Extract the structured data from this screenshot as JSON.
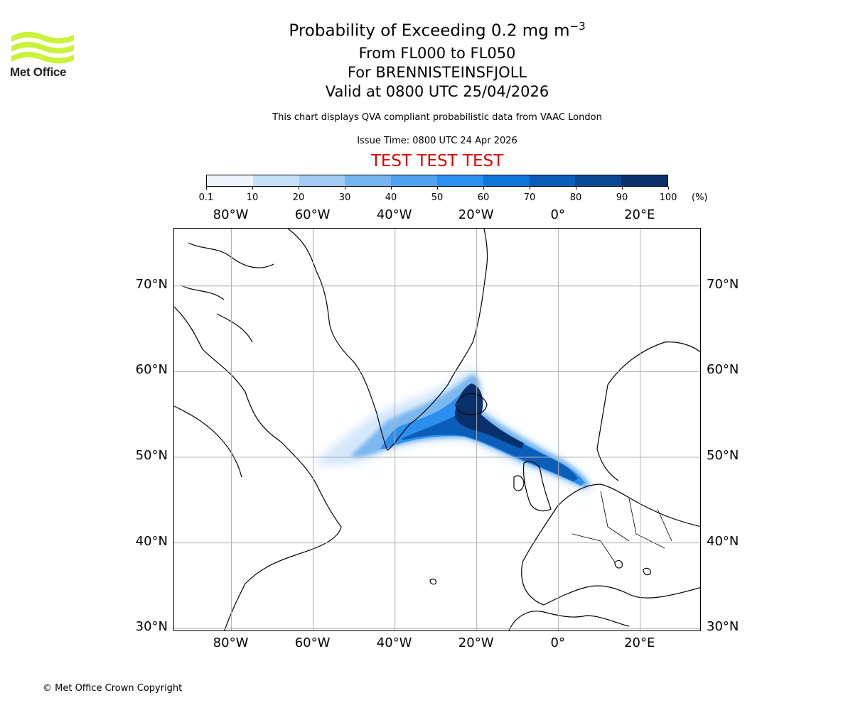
{
  "header": {
    "title_prefix": "Probability of Exceeding 0.2 mg m",
    "title_exponent": "−3",
    "levels": "From FL000 to FL050",
    "volcano": "For BRENNISTEINSFJOLL",
    "valid": "Valid at 0800 UTC 25/04/2026",
    "description": "This chart displays QVA compliant probabilistic data from VAAC London",
    "issue_time": "Issue Time: 0800 UTC 24 Apr 2026",
    "test_banner": "TEST TEST TEST"
  },
  "logo": {
    "text": "Met Office",
    "color": "#c9f23a"
  },
  "colorbar": {
    "unit": "(%)",
    "ticks": [
      "0.1",
      "10",
      "20",
      "30",
      "40",
      "50",
      "60",
      "70",
      "80",
      "90",
      "100"
    ],
    "colors": [
      "#eef5fd",
      "#c6e0f8",
      "#9fcbf4",
      "#74b4ef",
      "#4fa2ee",
      "#2b8ff0",
      "#1176db",
      "#0a5eb8",
      "#0a4993",
      "#08306b"
    ]
  },
  "map": {
    "projection": "plate carree",
    "lon_range": [
      -94,
      35
    ],
    "lat_range": [
      29.6,
      76.7
    ],
    "lon_labels": [
      {
        "lon": -80,
        "label": "80°W"
      },
      {
        "lon": -60,
        "label": "60°W"
      },
      {
        "lon": -40,
        "label": "40°W"
      },
      {
        "lon": -20,
        "label": "20°W"
      },
      {
        "lon": 0,
        "label": "0°"
      },
      {
        "lon": 20,
        "label": "20°E"
      }
    ],
    "lat_labels": [
      {
        "lat": 70,
        "label": "70°N"
      },
      {
        "lat": 60,
        "label": "60°N"
      },
      {
        "lat": 50,
        "label": "50°N"
      },
      {
        "lat": 40,
        "label": "40°N"
      },
      {
        "lat": 30,
        "label": "30°N"
      }
    ],
    "grid": true,
    "plume_probability_pct": {
      "core": 90,
      "inner": 70,
      "middle": 45,
      "outer": 25,
      "fringe": 5
    }
  },
  "footer": {
    "copyright": "© Met Office Crown Copyright"
  }
}
